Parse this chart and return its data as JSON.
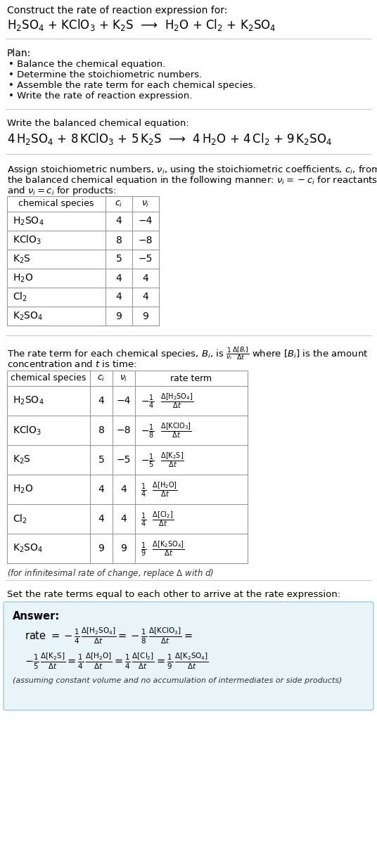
{
  "title": "Construct the rate of reaction expression for:",
  "plan_items": [
    "Balance the chemical equation.",
    "Determine the stoichiometric numbers.",
    "Assemble the rate term for each chemical species.",
    "Write the rate of reaction expression."
  ],
  "balanced_label": "Write the balanced chemical equation:",
  "table1_headers": [
    "chemical species",
    "c_i",
    "ν_i"
  ],
  "table1_rows": [
    [
      "H_2SO_4",
      "4",
      "−4"
    ],
    [
      "KClO_3",
      "8",
      "−8"
    ],
    [
      "K_2S",
      "5",
      "−5"
    ],
    [
      "H_2O",
      "4",
      "4"
    ],
    [
      "Cl_2",
      "4",
      "4"
    ],
    [
      "K_2SO_4",
      "9",
      "9"
    ]
  ],
  "table2_headers": [
    "chemical species",
    "c_i",
    "ν_i",
    "rate term"
  ],
  "table2_rows": [
    [
      "H_2SO_4",
      "4",
      "−4"
    ],
    [
      "KClO_3",
      "8",
      "−8"
    ],
    [
      "K_2S",
      "5",
      "−5"
    ],
    [
      "H_2O",
      "4",
      "4"
    ],
    [
      "Cl_2",
      "4",
      "4"
    ],
    [
      "K_2SO_4",
      "9",
      "9"
    ]
  ],
  "answer_box_color": "#e8f4f8",
  "answer_box_border": "#aad4e8",
  "bg_color": "#ffffff",
  "table_border_color": "#999999"
}
